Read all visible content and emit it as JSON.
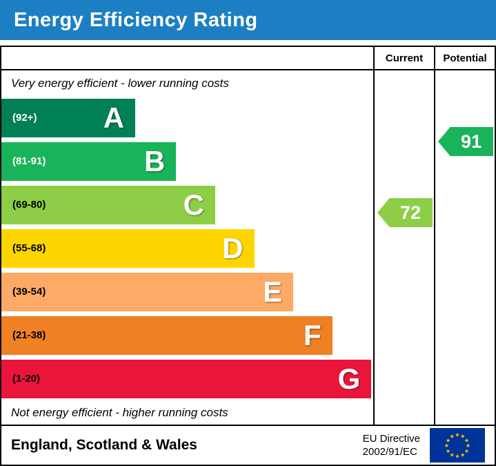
{
  "title": "Energy Efficiency Rating",
  "header": {
    "current_label": "Current",
    "potential_label": "Potential"
  },
  "notes": {
    "top": "Very energy efficient - lower running costs",
    "bottom": "Not energy efficient - higher running costs"
  },
  "footer": {
    "region": "England, Scotland & Wales",
    "directive_line1": "EU Directive",
    "directive_line2": "2002/91/EC",
    "flag_icon": "eu-flag"
  },
  "colors": {
    "title_bar_bg": "#1d7fc3",
    "title_text": "#ffffff",
    "border": "#000000",
    "eu_flag_blue": "#003399",
    "eu_flag_stars": "#ffcc00"
  },
  "chart_data": {
    "type": "bar",
    "title": "Energy Efficiency Rating",
    "orientation": "horizontal",
    "bands": [
      {
        "letter": "A",
        "range": "(92+)",
        "color": "#008054",
        "width_pct": 36
      },
      {
        "letter": "B",
        "range": "(81-91)",
        "color": "#19b459",
        "width_pct": 47
      },
      {
        "letter": "C",
        "range": "(69-80)",
        "color": "#8dce46",
        "width_pct": 57.5
      },
      {
        "letter": "D",
        "range": "(55-68)",
        "color": "#ffd500",
        "width_pct": 68
      },
      {
        "letter": "E",
        "range": "(39-54)",
        "color": "#fcaa65",
        "width_pct": 78.5
      },
      {
        "letter": "F",
        "range": "(21-38)",
        "color": "#ef8023",
        "width_pct": 89
      },
      {
        "letter": "G",
        "range": "(1-20)",
        "color": "#e9153b",
        "width_pct": 99.5
      }
    ],
    "current": {
      "value": 72,
      "band": "C",
      "color": "#8dce46"
    },
    "potential": {
      "value": 91,
      "band": "B",
      "color": "#19b459"
    }
  }
}
